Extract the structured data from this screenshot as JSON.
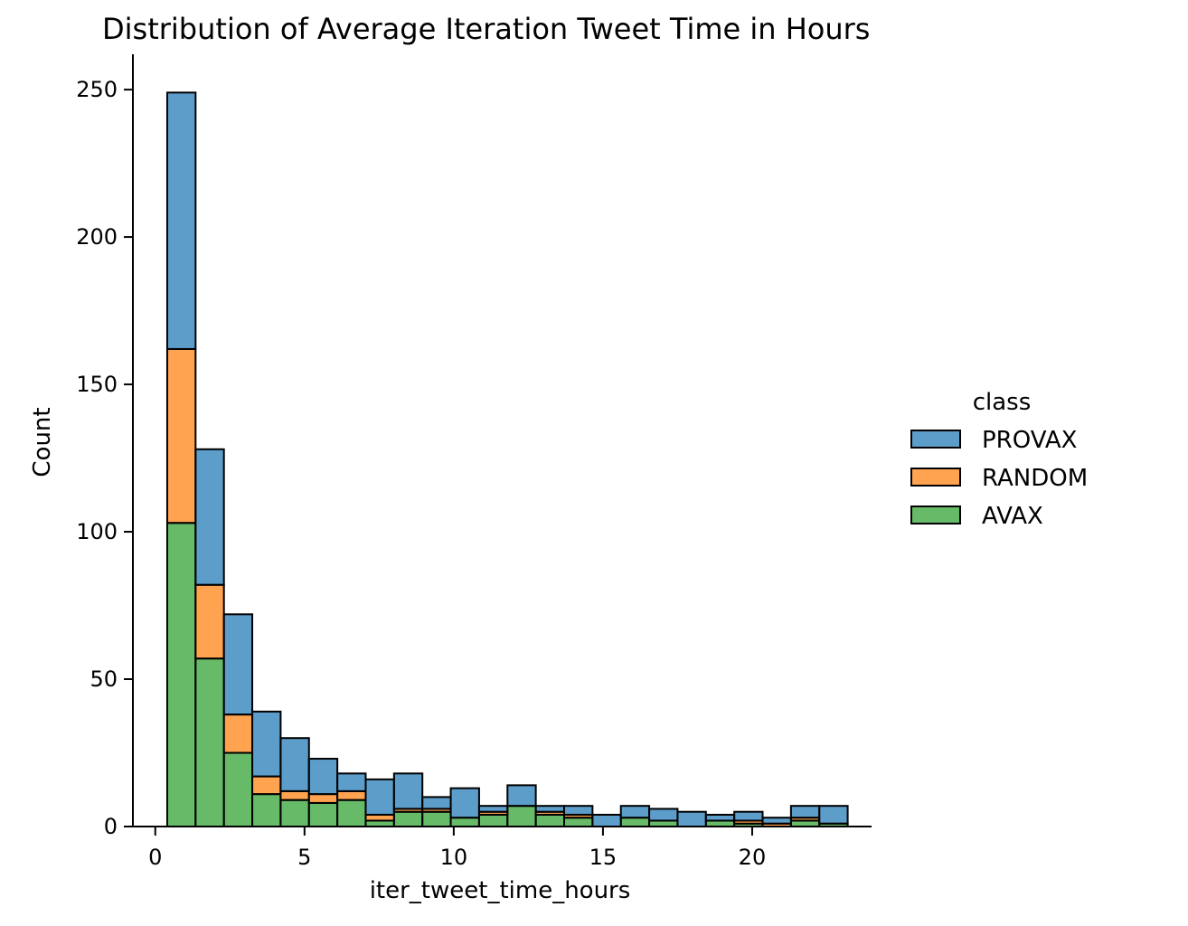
{
  "chart_data": {
    "type": "bar",
    "stacked": true,
    "title": "Distribution of Average Iteration Tweet Time in Hours",
    "xlabel": "iter_tweet_time_hours",
    "ylabel": "Count",
    "xlim": [
      -0.75,
      24
    ],
    "ylim": [
      0,
      262
    ],
    "xticks": [
      0,
      5,
      10,
      15,
      20
    ],
    "yticks": [
      0,
      50,
      100,
      150,
      200,
      250
    ],
    "bin_edges": [
      0.4,
      1.35,
      2.3,
      3.25,
      4.2,
      5.15,
      6.1,
      7.05,
      8.0,
      8.95,
      9.9,
      10.85,
      11.8,
      12.75,
      13.7,
      14.65,
      15.6,
      16.55,
      17.5,
      18.45,
      19.4,
      20.35,
      21.3,
      22.25,
      23.2
    ],
    "legend": {
      "title": "class",
      "position": "right"
    },
    "series": [
      {
        "name": "AVAX",
        "color": "#2ca02c",
        "values": [
          103,
          57,
          25,
          11,
          9,
          8,
          9,
          2,
          5,
          5,
          3,
          4,
          7,
          4,
          3,
          0,
          3,
          2,
          0,
          2,
          1,
          0,
          2,
          1
        ]
      },
      {
        "name": "RANDOM",
        "color": "#ff7f0e",
        "values": [
          59,
          25,
          13,
          6,
          3,
          3,
          3,
          2,
          1,
          1,
          0,
          1,
          0,
          1,
          1,
          0,
          0,
          0,
          0,
          0,
          1,
          1,
          1,
          0
        ]
      },
      {
        "name": "PROVAX",
        "color": "#1f77b4",
        "values": [
          87,
          46,
          34,
          22,
          18,
          12,
          6,
          12,
          12,
          4,
          10,
          2,
          7,
          2,
          3,
          4,
          4,
          4,
          5,
          2,
          3,
          2,
          4,
          6
        ]
      }
    ]
  }
}
